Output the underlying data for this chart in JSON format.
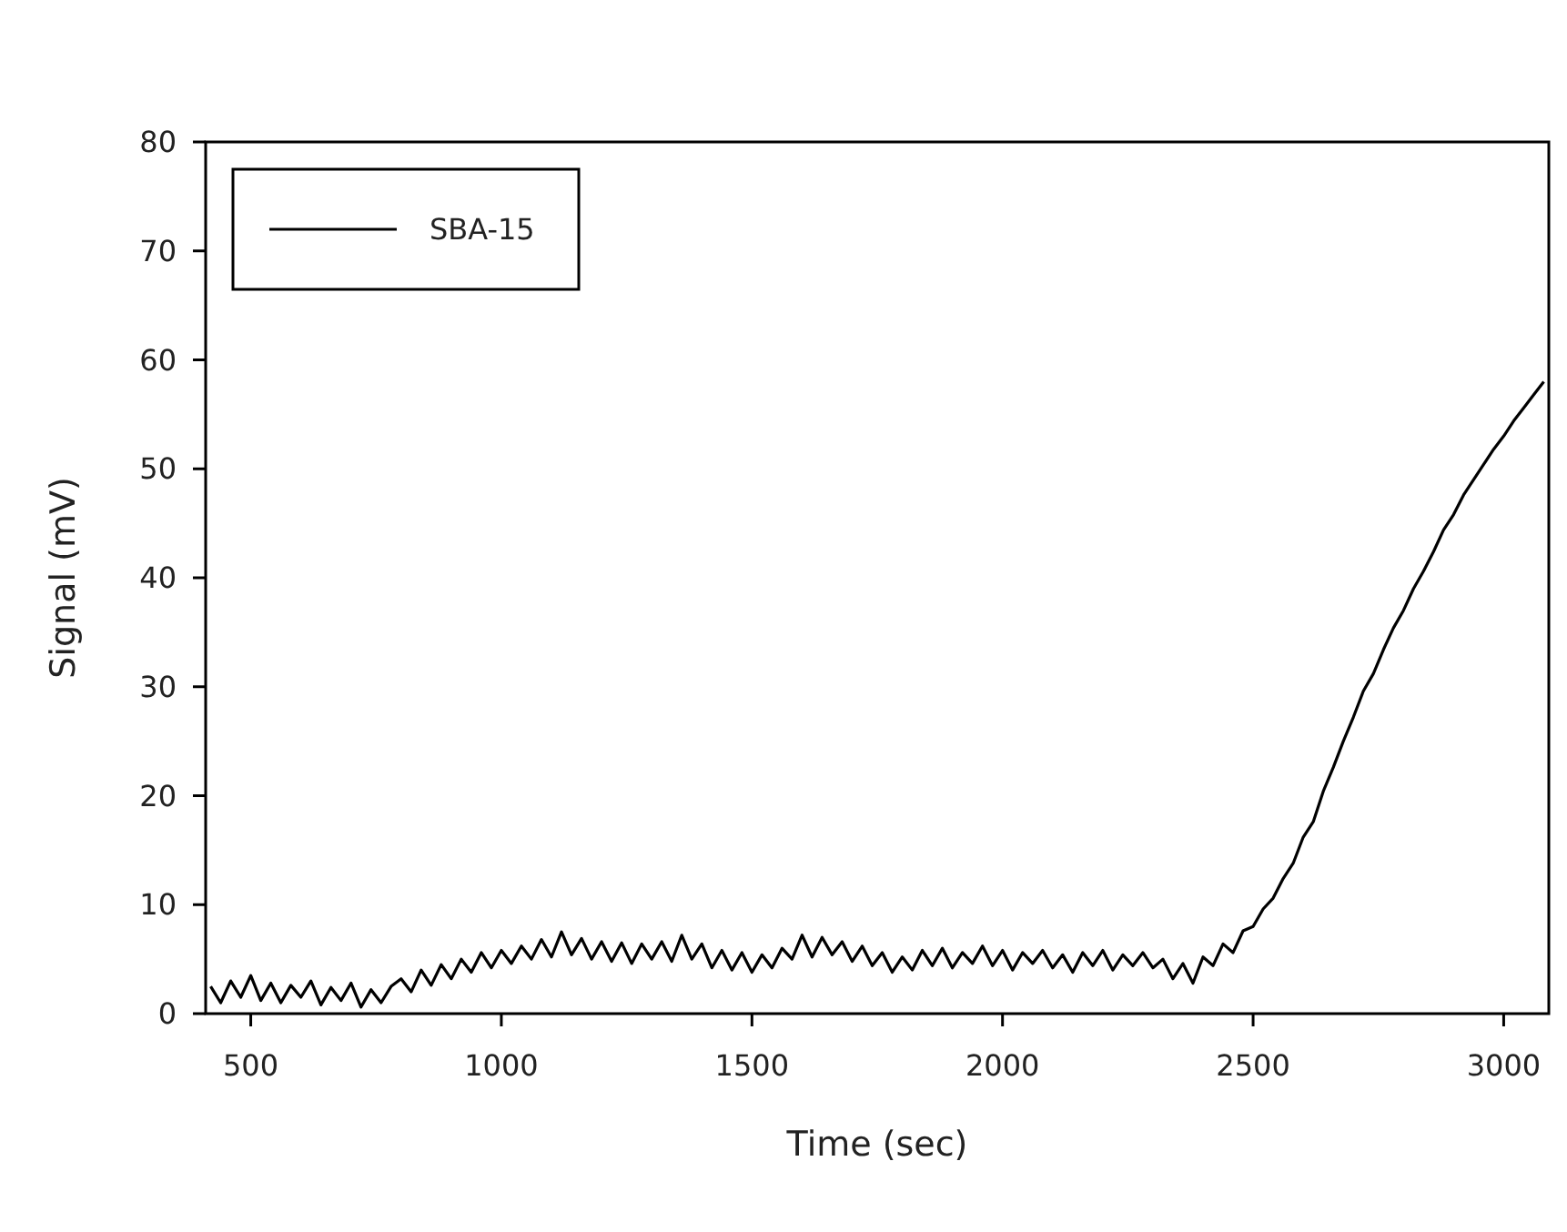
{
  "chart_data": {
    "type": "line",
    "xlabel": "Time (sec)",
    "ylabel": "Signal (mV)",
    "x": [
      420,
      440,
      460,
      480,
      500,
      520,
      540,
      560,
      580,
      600,
      620,
      640,
      660,
      680,
      700,
      720,
      740,
      760,
      780,
      800,
      820,
      840,
      860,
      880,
      900,
      920,
      940,
      960,
      980,
      1000,
      1020,
      1040,
      1060,
      1080,
      1100,
      1120,
      1140,
      1160,
      1180,
      1200,
      1220,
      1240,
      1260,
      1280,
      1300,
      1320,
      1340,
      1360,
      1380,
      1400,
      1420,
      1440,
      1460,
      1480,
      1500,
      1520,
      1540,
      1560,
      1580,
      1600,
      1620,
      1640,
      1660,
      1680,
      1700,
      1720,
      1740,
      1760,
      1780,
      1800,
      1820,
      1840,
      1860,
      1880,
      1900,
      1920,
      1940,
      1960,
      1980,
      2000,
      2020,
      2040,
      2060,
      2080,
      2100,
      2120,
      2140,
      2160,
      2180,
      2200,
      2220,
      2240,
      2260,
      2280,
      2300,
      2320,
      2340,
      2360,
      2380,
      2400,
      2420,
      2440,
      2460,
      2480,
      2500,
      2520,
      2540,
      2560,
      2580,
      2600,
      2620,
      2640,
      2660,
      2680,
      2700,
      2720,
      2740,
      2760,
      2780,
      2800,
      2820,
      2840,
      2860,
      2880,
      2900,
      2920,
      2940,
      2960,
      2980,
      3000,
      3020,
      3040,
      3060,
      3080
    ],
    "series": [
      {
        "name": "SBA-15",
        "color": "#000000",
        "values": [
          2.5,
          1.0,
          3.0,
          1.5,
          3.5,
          1.2,
          2.8,
          1.0,
          2.6,
          1.5,
          3.0,
          0.8,
          2.4,
          1.2,
          2.8,
          0.6,
          2.2,
          1.0,
          2.5,
          3.2,
          2.0,
          4.0,
          2.6,
          4.5,
          3.2,
          5.0,
          3.8,
          5.6,
          4.2,
          5.8,
          4.6,
          6.2,
          5.0,
          6.8,
          5.2,
          7.5,
          5.4,
          6.9,
          5.0,
          6.6,
          4.8,
          6.5,
          4.6,
          6.4,
          5.0,
          6.6,
          4.8,
          7.2,
          5.0,
          6.4,
          4.2,
          5.8,
          4.0,
          5.6,
          3.8,
          5.4,
          4.2,
          6.0,
          5.0,
          7.2,
          5.2,
          7.0,
          5.4,
          6.6,
          4.8,
          6.2,
          4.4,
          5.6,
          3.8,
          5.2,
          4.0,
          5.8,
          4.4,
          6.0,
          4.2,
          5.6,
          4.6,
          6.2,
          4.4,
          5.8,
          4.0,
          5.6,
          4.6,
          5.8,
          4.2,
          5.4,
          3.8,
          5.6,
          4.4,
          5.8,
          4.0,
          5.4,
          4.4,
          5.6,
          4.2,
          5.0,
          3.2,
          4.6,
          2.8,
          5.2,
          4.4,
          6.4,
          5.6,
          7.6,
          8.0,
          9.6,
          10.6,
          12.4,
          13.8,
          16.2,
          17.6,
          20.4,
          22.6,
          25.0,
          27.2,
          29.6,
          31.2,
          33.4,
          35.4,
          37.0,
          39.0,
          40.6,
          42.4,
          44.4,
          45.8,
          47.6,
          49.0,
          50.4,
          51.8,
          53.0,
          54.4,
          55.6,
          56.8,
          58.0
        ]
      }
    ],
    "xlim": [
      410,
      3090
    ],
    "xticks": [
      500,
      1000,
      1500,
      2000,
      2500,
      3000
    ],
    "ylim": [
      0,
      80
    ],
    "yticks": [
      0,
      10,
      20,
      30,
      40,
      50,
      60,
      70,
      80
    ],
    "legend": "top left",
    "grid": false
  }
}
